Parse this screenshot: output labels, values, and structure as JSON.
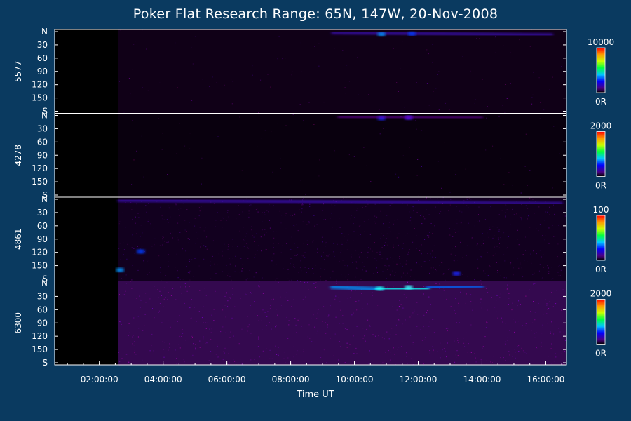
{
  "chart_data": {
    "type": "heatmap",
    "title": "Poker Flat Research Range: 65N, 147W, 20-Nov-2008",
    "xlabel": "Time UT",
    "x_ticks": [
      "02:00:00",
      "04:00:00",
      "06:00:00",
      "08:00:00",
      "10:00:00",
      "12:00:00",
      "14:00:00",
      "16:00:00"
    ],
    "x_tick_hours": [
      2,
      4,
      6,
      8,
      10,
      12,
      14,
      16
    ],
    "xlim_hours": [
      0.6,
      16.65
    ],
    "data_start_hour": 2.6,
    "y_ticks": [
      "N",
      "30",
      "60",
      "90",
      "120",
      "150",
      "S"
    ],
    "y_tick_values": [
      0,
      30,
      60,
      90,
      120,
      150,
      180
    ],
    "ylim": [
      0,
      180
    ],
    "panels": [
      {
        "ylabel": "5577",
        "colorbar": {
          "max_label": "10000",
          "min_label": "0R"
        },
        "features": [
          {
            "kind": "arc",
            "t_start": 9.3,
            "t_end": 16.2,
            "lat_start": 2,
            "lat_end": 8,
            "intensity": 0.35
          },
          {
            "kind": "spot",
            "t": 10.85,
            "lat": 6,
            "intensity": 0.6
          },
          {
            "kind": "spot",
            "t": 11.8,
            "lat": 5,
            "intensity": 0.5
          }
        ]
      },
      {
        "ylabel": "4278",
        "colorbar": {
          "max_label": "2000",
          "min_label": "0R"
        },
        "features": [
          {
            "kind": "spot",
            "t": 10.85,
            "lat": 6,
            "intensity": 0.45
          },
          {
            "kind": "spot",
            "t": 11.7,
            "lat": 5,
            "intensity": 0.35
          },
          {
            "kind": "arc",
            "t_start": 9.5,
            "t_end": 14.0,
            "lat_start": 3,
            "lat_end": 6,
            "intensity": 0.2
          }
        ]
      },
      {
        "ylabel": "4861",
        "colorbar": {
          "max_label": "100",
          "min_label": "0R"
        },
        "features": [
          {
            "kind": "arc",
            "t_start": 2.6,
            "t_end": 16.5,
            "lat_start": 2,
            "lat_end": 10,
            "intensity": 0.35
          },
          {
            "kind": "spot",
            "t": 3.3,
            "lat": 118,
            "intensity": 0.5
          },
          {
            "kind": "spot",
            "t": 13.2,
            "lat": 168,
            "intensity": 0.45
          },
          {
            "kind": "spot",
            "t": 2.65,
            "lat": 160,
            "intensity": 0.6
          }
        ]
      },
      {
        "ylabel": "6300",
        "colorbar": {
          "max_label": "2000",
          "min_label": "0R"
        },
        "features": [
          {
            "kind": "arc",
            "t_start": 2.6,
            "t_end": 16.65,
            "lat_start": 4,
            "lat_end": 4,
            "intensity": 0.5
          },
          {
            "kind": "arc",
            "t_start": 9.3,
            "t_end": 10.7,
            "lat_start": 8,
            "lat_end": 14,
            "intensity": 0.6
          },
          {
            "kind": "arc",
            "t_start": 10.7,
            "t_end": 12.3,
            "lat_start": 14,
            "lat_end": 12,
            "intensity": 0.72
          },
          {
            "kind": "arc",
            "t_start": 12.3,
            "t_end": 14.0,
            "lat_start": 10,
            "lat_end": 6,
            "intensity": 0.55
          },
          {
            "kind": "spot",
            "t": 11.7,
            "lat": 10,
            "intensity": 0.8
          },
          {
            "kind": "spot",
            "t": 10.8,
            "lat": 12,
            "intensity": 0.75
          }
        ]
      }
    ]
  }
}
